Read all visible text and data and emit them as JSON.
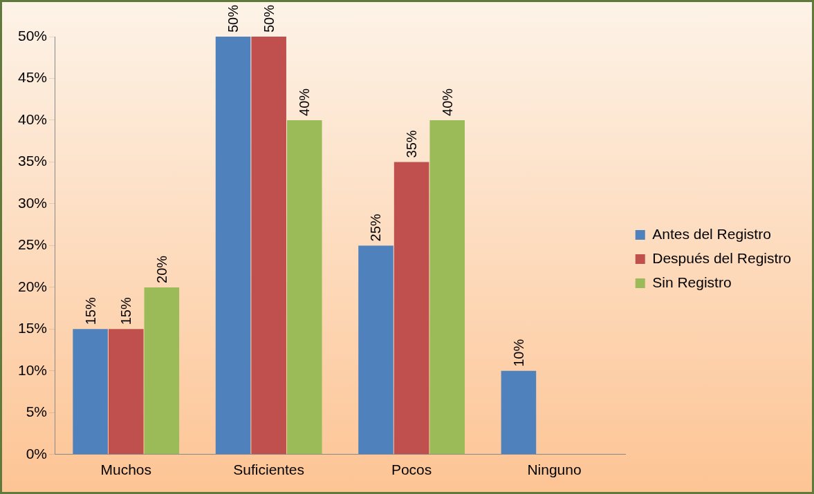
{
  "chart_data": {
    "type": "bar",
    "categories": [
      "Muchos",
      "Suficientes",
      "Pocos",
      "Ninguno"
    ],
    "series": [
      {
        "name": "Antes del Registro",
        "color": "#4f81bd",
        "values": [
          15,
          50,
          25,
          10
        ],
        "value_labels": [
          "15%",
          "50%",
          "25%",
          "10%"
        ]
      },
      {
        "name": "Después del Registro",
        "color": "#c0504d",
        "values": [
          15,
          50,
          35,
          null
        ],
        "value_labels": [
          "15%",
          "50%",
          "35%",
          null
        ]
      },
      {
        "name": "Sin Registro",
        "color": "#9bbb59",
        "values": [
          20,
          40,
          40,
          null
        ],
        "value_labels": [
          "20%",
          "40%",
          "40%",
          null
        ]
      }
    ],
    "ylim": [
      0,
      50
    ],
    "yticks": [
      {
        "value": 0,
        "label": "0%"
      },
      {
        "value": 5,
        "label": "5%"
      },
      {
        "value": 10,
        "label": "10%"
      },
      {
        "value": 15,
        "label": "15%"
      },
      {
        "value": 20,
        "label": "20%"
      },
      {
        "value": 25,
        "label": "25%"
      },
      {
        "value": 30,
        "label": "30%"
      },
      {
        "value": 35,
        "label": "35%"
      },
      {
        "value": 40,
        "label": "40%"
      },
      {
        "value": 45,
        "label": "45%"
      },
      {
        "value": 50,
        "label": "50%"
      }
    ],
    "grid": false,
    "legend": "right"
  }
}
